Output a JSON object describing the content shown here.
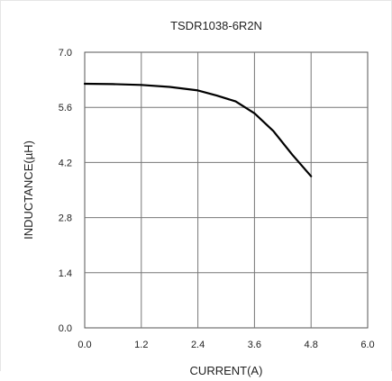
{
  "chart_data": {
    "type": "line",
    "title": "TSDR1038-6R2N",
    "xlabel": "CURRENT(A)",
    "ylabel": "INDUCTANCE(µH)",
    "xlim": [
      0,
      6.0
    ],
    "ylim": [
      0,
      7.0
    ],
    "x_ticks": [
      "0.0",
      "1.2",
      "2.4",
      "3.6",
      "4.8",
      "6.0"
    ],
    "y_ticks": [
      "0.0",
      "1.4",
      "2.8",
      "4.2",
      "5.6",
      "7.0"
    ],
    "grid": true,
    "series": [
      {
        "x": [
          0.0,
          0.6,
          1.2,
          1.8,
          2.4,
          2.8,
          3.2,
          3.6,
          4.0,
          4.4,
          4.8
        ],
        "y": [
          6.2,
          6.19,
          6.17,
          6.12,
          6.03,
          5.9,
          5.75,
          5.45,
          5.0,
          4.4,
          3.85
        ]
      }
    ],
    "line_color": "#000000"
  }
}
